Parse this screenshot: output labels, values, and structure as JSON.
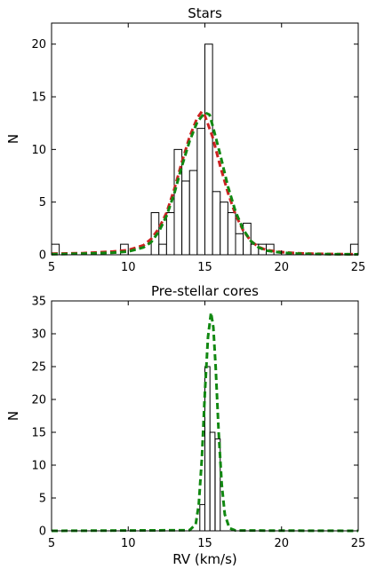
{
  "chart_data": [
    {
      "type": "bar",
      "title": "Stars",
      "xlabel": "",
      "ylabel": "N",
      "xlim": [
        5,
        25
      ],
      "ylim": [
        0,
        22
      ],
      "xticks": [
        5,
        10,
        15,
        20,
        25
      ],
      "yticks": [
        0,
        5,
        10,
        15,
        20
      ],
      "grid": false,
      "bin_width": 0.5,
      "histogram": {
        "bin_starts": [
          5,
          9.5,
          11.5,
          12,
          12.5,
          13,
          13.5,
          14,
          14.5,
          15,
          15.5,
          16,
          16.5,
          17,
          17.5,
          18,
          18.5,
          19,
          24.5
        ],
        "counts": [
          1,
          1,
          4,
          1,
          4,
          10,
          7,
          8,
          12,
          20,
          6,
          5,
          4,
          2,
          3,
          1,
          1,
          1,
          1
        ]
      },
      "series": [
        {
          "color": "#cc2222",
          "style": "dashed",
          "x": [
            5,
            7,
            9,
            10,
            11,
            11.5,
            12,
            12.5,
            13,
            13.5,
            14,
            14.5,
            14.8,
            15,
            15.5,
            16,
            16.5,
            17,
            17.5,
            18,
            18.5,
            19,
            20,
            21,
            22,
            23,
            24,
            25
          ],
          "y": [
            0.1,
            0.15,
            0.3,
            0.45,
            0.9,
            1.5,
            2.5,
            4,
            6.2,
            8.8,
            11.2,
            13,
            13.6,
            13.2,
            11.2,
            8.4,
            5.9,
            3.8,
            2.3,
            1.3,
            0.75,
            0.45,
            0.25,
            0.15,
            0.1,
            0.08,
            0.06,
            0.05
          ]
        },
        {
          "color": "#118811",
          "style": "dashed",
          "x": [
            5,
            7,
            9,
            10,
            11,
            11.5,
            12,
            12.5,
            13,
            13.5,
            14,
            14.5,
            15,
            15.3,
            15.5,
            16,
            16.5,
            17,
            17.5,
            18,
            18.5,
            19,
            20,
            21,
            22,
            23,
            24,
            25
          ],
          "y": [
            0.05,
            0.1,
            0.2,
            0.3,
            0.7,
            1.2,
            2.2,
            3.7,
            5.8,
            8.4,
            10.8,
            12.6,
            13.5,
            13.3,
            12.3,
            9.5,
            6.5,
            4.1,
            2.4,
            1.3,
            0.7,
            0.4,
            0.2,
            0.12,
            0.08,
            0.06,
            0.05,
            0.04
          ]
        }
      ]
    },
    {
      "type": "bar",
      "title": "Pre-stellar cores",
      "xlabel": "RV (km/s)",
      "ylabel": "N",
      "xlim": [
        5,
        25
      ],
      "ylim": [
        0,
        35
      ],
      "xticks": [
        5,
        10,
        15,
        20,
        25
      ],
      "yticks": [
        0,
        5,
        10,
        15,
        20,
        25,
        30,
        35
      ],
      "grid": false,
      "bin_width": 0.33,
      "histogram": {
        "bin_starts": [
          14.67,
          15.0,
          15.33,
          15.67
        ],
        "counts": [
          4,
          25,
          15,
          14
        ]
      },
      "series": [
        {
          "color": "#118811",
          "style": "dashed",
          "x": [
            5,
            14.0,
            14.4,
            14.6,
            14.8,
            15.0,
            15.2,
            15.4,
            15.55,
            15.7,
            15.9,
            16.1,
            16.3,
            16.6,
            17,
            25
          ],
          "y": [
            0,
            0.1,
            1.0,
            4.0,
            11.0,
            21.0,
            29.5,
            33.2,
            31.0,
            25.0,
            15.0,
            7.0,
            2.5,
            0.4,
            0.05,
            0
          ]
        }
      ]
    }
  ]
}
